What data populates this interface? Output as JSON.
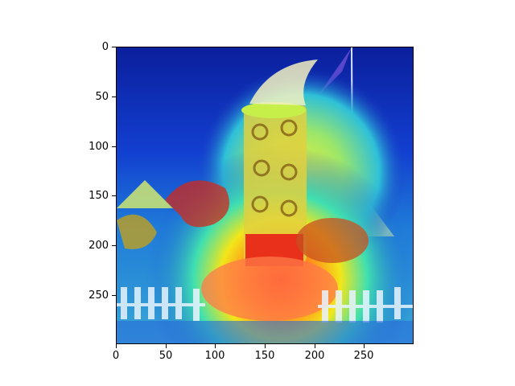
{
  "image": {
    "description": "",
    "heatmap_overlay": "jet colormap"
  },
  "axes": {
    "y_ticks": [
      "0",
      "50",
      "100",
      "150",
      "200",
      "250"
    ],
    "x_ticks": [
      "0",
      "50",
      "100",
      "150",
      "200",
      "250"
    ]
  },
  "colors": {
    "background": "#ffffff",
    "axis": "#000000"
  }
}
